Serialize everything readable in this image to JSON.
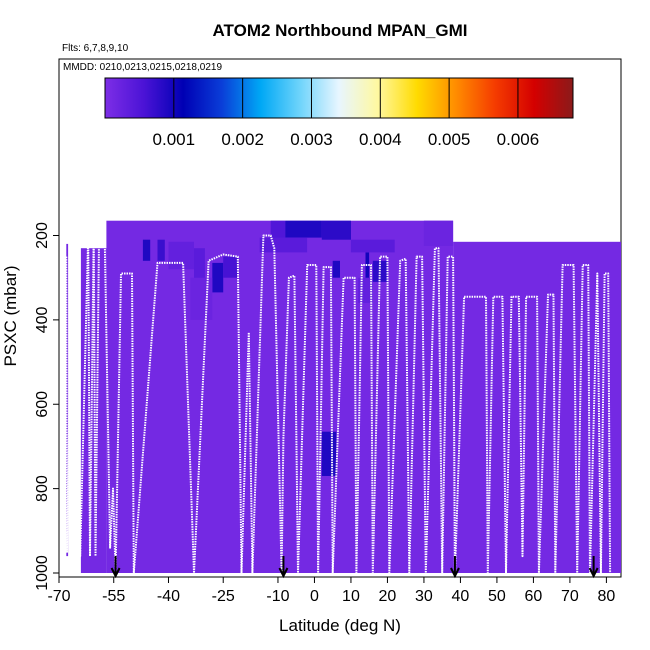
{
  "chart_data": {
    "type": "heatmap",
    "title": "ATOM2 Northbound MPAN_GMI",
    "flights_note": "Flts: 6,7,8,9,10",
    "dates_note": "MMDD: 0210,0213,0215,0218,0219",
    "xlabel": "Latitude (deg N)",
    "ylabel": "PSXC (mbar)",
    "xlim": [
      -70,
      84
    ],
    "ylim": [
      1010,
      100
    ],
    "y_reversed": true,
    "x_ticks": [
      -70,
      -55,
      -40,
      -25,
      -10,
      0,
      10,
      20,
      30,
      40,
      50,
      60,
      70,
      80
    ],
    "y_ticks": [
      200,
      400,
      600,
      800,
      1000
    ],
    "colorbar": {
      "range": [
        0,
        0.0068
      ],
      "ticks": [
        "0.001",
        "0.002",
        "0.003",
        "0.004",
        "0.005",
        "0.006"
      ],
      "tick_values": [
        0.001,
        0.002,
        0.003,
        0.004,
        0.005,
        0.006
      ],
      "colors": [
        "#7d2ee6",
        "#4b13d6",
        "#0000b4",
        "#0a3ed8",
        "#00a8f5",
        "#6fd4fb",
        "#e8f6ff",
        "#fff8a0",
        "#ffdb00",
        "#ff8c00",
        "#f53c00",
        "#d40000",
        "#8b1a1a"
      ]
    },
    "background_value": 0.0001,
    "cells": [
      {
        "lat": [
          -68,
          -67.5
        ],
        "p": [
          220,
          960
        ],
        "v": 0.0001
      },
      {
        "lat": [
          -64,
          -57
        ],
        "p": [
          230,
          1000
        ],
        "v": 0.0001
      },
      {
        "lat": [
          -57,
          38
        ],
        "p": [
          165,
          1000
        ],
        "v": 0.0001
      },
      {
        "lat": [
          38,
          84
        ],
        "p": [
          215,
          1000
        ],
        "v": 0.0001
      },
      {
        "lat": [
          -47,
          -45
        ],
        "p": [
          210,
          260
        ],
        "v": 0.0009
      },
      {
        "lat": [
          -43,
          -41
        ],
        "p": [
          210,
          260
        ],
        "v": 0.0007
      },
      {
        "lat": [
          -40,
          -33
        ],
        "p": [
          215,
          280
        ],
        "v": 0.0003
      },
      {
        "lat": [
          -33,
          -30
        ],
        "p": [
          230,
          330
        ],
        "v": 0.0004
      },
      {
        "lat": [
          -28,
          -25
        ],
        "p": [
          265,
          335
        ],
        "v": 0.0009
      },
      {
        "lat": [
          -25,
          -21
        ],
        "p": [
          250,
          300
        ],
        "v": 0.0006
      },
      {
        "lat": [
          -34,
          -28
        ],
        "p": [
          300,
          400
        ],
        "v": 0.0002
      },
      {
        "lat": [
          -12,
          -8
        ],
        "p": [
          165,
          230
        ],
        "v": 0.0005
      },
      {
        "lat": [
          -8,
          2
        ],
        "p": [
          165,
          205
        ],
        "v": 0.0009
      },
      {
        "lat": [
          2,
          10
        ],
        "p": [
          165,
          210
        ],
        "v": 0.0008
      },
      {
        "lat": [
          -15,
          -2
        ],
        "p": [
          205,
          240
        ],
        "v": 0.0004
      },
      {
        "lat": [
          5,
          7
        ],
        "p": [
          260,
          300
        ],
        "v": 0.0009
      },
      {
        "lat": [
          14,
          15
        ],
        "p": [
          240,
          310
        ],
        "v": 0.001
      },
      {
        "lat": [
          16,
          20
        ],
        "p": [
          260,
          310
        ],
        "v": 0.0008
      },
      {
        "lat": [
          10,
          22
        ],
        "p": [
          210,
          240
        ],
        "v": 0.0004
      },
      {
        "lat": [
          12,
          16
        ],
        "p": [
          300,
          360
        ],
        "v": 0.0003
      },
      {
        "lat": [
          30,
          38
        ],
        "p": [
          165,
          225
        ],
        "v": 0.0002
      },
      {
        "lat": [
          2,
          6
        ],
        "p": [
          665,
          770
        ],
        "v": 0.0009
      }
    ],
    "flight_track": [
      [
        -68,
        250
      ],
      [
        -67.8,
        950
      ],
      [
        -66.5,
        230
      ],
      [
        -66,
        960
      ],
      [
        -65,
        550
      ],
      [
        -64.2,
        960
      ],
      [
        -62,
        200
      ],
      [
        -61.5,
        960
      ],
      [
        -60.5,
        195
      ],
      [
        -60,
        960
      ],
      [
        -59,
        190
      ],
      [
        -57.5,
        190
      ],
      [
        -56,
        940
      ],
      [
        -55.2,
        800
      ],
      [
        -54.5,
        1000
      ],
      [
        -53,
        290
      ],
      [
        -50,
        290
      ],
      [
        -49.5,
        1000
      ],
      [
        -43,
        265
      ],
      [
        -36,
        265
      ],
      [
        -33,
        1000
      ],
      [
        -29,
        260
      ],
      [
        -25,
        245
      ],
      [
        -21,
        250
      ],
      [
        -20,
        1000
      ],
      [
        -18,
        430
      ],
      [
        -17,
        1000
      ],
      [
        -14,
        200
      ],
      [
        -12,
        200
      ],
      [
        -11,
        230
      ],
      [
        -9,
        1000
      ],
      [
        -8.5,
        680
      ],
      [
        -7,
        300
      ],
      [
        -5.5,
        295
      ],
      [
        -4.5,
        1000
      ],
      [
        -2,
        270
      ],
      [
        0.5,
        270
      ],
      [
        1,
        1000
      ],
      [
        2.5,
        275
      ],
      [
        4.5,
        275
      ],
      [
        5,
        1000
      ],
      [
        8,
        300
      ],
      [
        11,
        300
      ],
      [
        11.5,
        1000
      ],
      [
        13,
        270
      ],
      [
        15.5,
        270
      ],
      [
        16,
        1000
      ],
      [
        18,
        250
      ],
      [
        20,
        250
      ],
      [
        20.5,
        1000
      ],
      [
        23.5,
        260
      ],
      [
        25,
        255
      ],
      [
        26,
        1000
      ],
      [
        28,
        250
      ],
      [
        29.5,
        250
      ],
      [
        30.5,
        1000
      ],
      [
        33,
        230
      ],
      [
        34,
        230
      ],
      [
        35,
        1000
      ],
      [
        36.5,
        250
      ],
      [
        38,
        250
      ],
      [
        38.5,
        1000
      ],
      [
        41,
        345
      ],
      [
        47,
        345
      ],
      [
        47.5,
        1000
      ],
      [
        49,
        345
      ],
      [
        51.5,
        345
      ],
      [
        52.5,
        1000
      ],
      [
        54,
        345
      ],
      [
        56,
        345
      ],
      [
        57,
        960
      ],
      [
        58,
        345
      ],
      [
        61,
        345
      ],
      [
        61.5,
        1000
      ],
      [
        64,
        340
      ],
      [
        65.5,
        340
      ],
      [
        66,
        1000
      ],
      [
        68,
        270
      ],
      [
        71,
        270
      ],
      [
        72,
        1000
      ],
      [
        73.5,
        270
      ],
      [
        75,
        270
      ],
      [
        75.5,
        1000
      ],
      [
        77.5,
        290
      ],
      [
        78.5,
        1000
      ],
      [
        79.5,
        290
      ],
      [
        80.5,
        290
      ],
      [
        81,
        1000
      ]
    ],
    "arrow_lats": [
      -54.5,
      -8.5,
      38.5,
      76.5
    ]
  }
}
